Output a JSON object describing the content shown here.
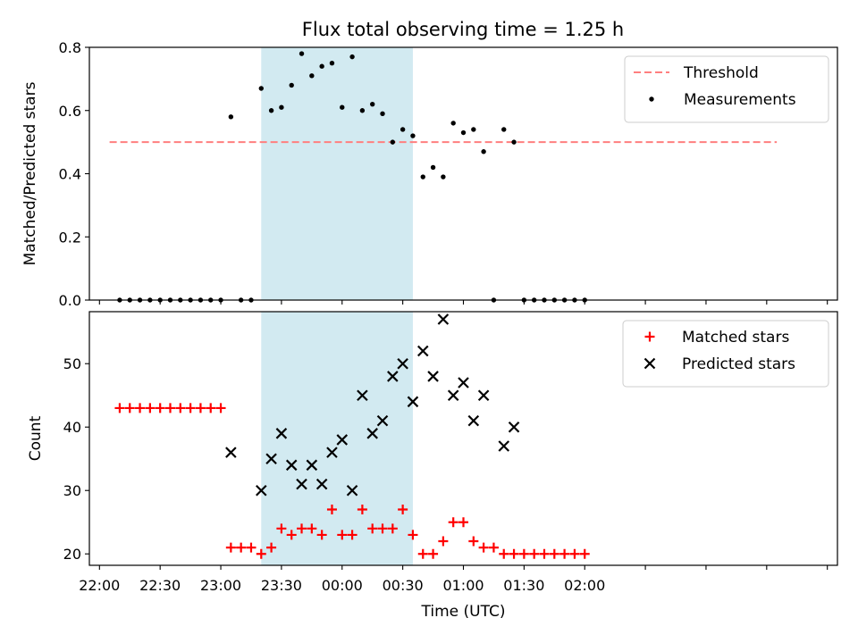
{
  "figure": {
    "title": "Flux total observing time = 1.25 h"
  },
  "chart_data": [
    {
      "type": "scatter",
      "ylabel": "Matched/Predicted stars",
      "xlabel": "",
      "ylim": [
        0.0,
        0.8
      ],
      "yticks": [
        0.0,
        0.2,
        0.4,
        0.6,
        0.8
      ],
      "ytick_labels": [
        "0.0",
        "0.2",
        "0.4",
        "0.6",
        "0.8"
      ],
      "x_range_min": [
        -65,
        305
      ],
      "xticks_min": [
        -60,
        -30,
        0,
        30,
        60,
        90,
        120,
        150,
        180,
        210,
        240,
        270,
        300
      ],
      "shaded_region_min": [
        20,
        95
      ],
      "shade_color": "#add8e6",
      "legend_position": "top-right",
      "threshold": {
        "name": "Threshold",
        "y": 0.5,
        "x_range_min": [
          -55,
          275
        ],
        "color": "#ff7f7f"
      },
      "series": [
        {
          "name": "Measurements",
          "marker": "dot",
          "color": "#000000",
          "x": [
            "22:10",
            "22:15",
            "22:20",
            "22:25",
            "22:30",
            "22:35",
            "22:40",
            "22:45",
            "22:50",
            "22:55",
            "23:00",
            "23:05",
            "23:10",
            "23:15",
            "23:20",
            "23:25",
            "23:30",
            "23:35",
            "23:40",
            "23:45",
            "23:50",
            "23:55",
            "00:00",
            "00:05",
            "00:10",
            "00:15",
            "00:20",
            "00:25",
            "00:30",
            "00:35",
            "00:40",
            "00:45",
            "00:50",
            "00:55",
            "01:00",
            "01:05",
            "01:10",
            "01:15",
            "01:20",
            "01:25",
            "01:30",
            "01:35",
            "01:40",
            "01:45",
            "01:50",
            "01:55",
            "02:00"
          ],
          "y": [
            0,
            0,
            0,
            0,
            0,
            0,
            0,
            0,
            0,
            0,
            0,
            0.58,
            0,
            0,
            0.67,
            0.6,
            0.61,
            0.68,
            0.78,
            0.71,
            0.74,
            0.75,
            0.61,
            0.77,
            0.6,
            0.62,
            0.59,
            0.5,
            0.54,
            0.52,
            0.39,
            0.42,
            0.39,
            0.56,
            0.53,
            0.54,
            0.47,
            0,
            0.54,
            0.5,
            0,
            0,
            0,
            0,
            0,
            0,
            0
          ]
        }
      ]
    },
    {
      "type": "scatter",
      "ylabel": "Count",
      "xlabel": "Time (UTC)",
      "ylim": [
        18.2,
        58.2
      ],
      "yticks": [
        20,
        30,
        40,
        50
      ],
      "ytick_labels": [
        "20",
        "30",
        "40",
        "50"
      ],
      "x_range_min": [
        -65,
        305
      ],
      "xticks_min": [
        -60,
        -30,
        0,
        30,
        60,
        90,
        120,
        150,
        180,
        210,
        240,
        270,
        300
      ],
      "xtick_labels": [
        "22:00",
        "22:30",
        "23:00",
        "23:30",
        "00:00",
        "00:30",
        "01:00",
        "01:30",
        "02:00"
      ],
      "xtick_label_min": [
        -60,
        -30,
        0,
        30,
        60,
        90,
        120,
        150,
        180
      ],
      "xtick_label_note_unused": "",
      "shaded_region_min": [
        20,
        95
      ],
      "shade_color": "#add8e6",
      "legend_position": "top-right",
      "series": [
        {
          "name": "Matched stars",
          "marker": "plus",
          "color": "#ff0000",
          "x": [
            "22:10",
            "22:15",
            "22:20",
            "22:25",
            "22:30",
            "22:35",
            "22:40",
            "22:45",
            "22:50",
            "22:55",
            "23:00",
            "23:05",
            "23:10",
            "23:15",
            "23:20",
            "23:25",
            "23:30",
            "23:35",
            "23:40",
            "23:45",
            "23:50",
            "23:55",
            "00:00",
            "00:05",
            "00:10",
            "00:15",
            "00:20",
            "00:25",
            "00:30",
            "00:35",
            "00:40",
            "00:45",
            "00:50",
            "00:55",
            "01:00",
            "01:05",
            "01:10",
            "01:15",
            "01:20",
            "01:25",
            "01:30",
            "01:35",
            "01:40",
            "01:45",
            "01:50",
            "01:55",
            "02:00"
          ],
          "y": [
            43,
            43,
            43,
            43,
            43,
            43,
            43,
            43,
            43,
            43,
            43,
            21,
            21,
            21,
            20,
            21,
            24,
            23,
            24,
            24,
            23,
            27,
            23,
            23,
            27,
            24,
            24,
            24,
            27,
            23,
            20,
            20,
            22,
            25,
            25,
            22,
            21,
            21,
            20,
            20,
            20,
            20,
            20,
            20,
            20,
            20,
            20
          ]
        },
        {
          "name": "Predicted stars",
          "marker": "x",
          "color": "#000000",
          "x": [
            "23:05",
            "23:20",
            "23:25",
            "23:30",
            "23:35",
            "23:40",
            "23:45",
            "23:50",
            "23:55",
            "00:00",
            "00:05",
            "00:10",
            "00:15",
            "00:20",
            "00:25",
            "00:30",
            "00:35",
            "00:40",
            "00:45",
            "00:50",
            "00:55",
            "01:00",
            "01:05",
            "01:10",
            "01:20",
            "01:25"
          ],
          "y": [
            36,
            30,
            35,
            39,
            34,
            31,
            34,
            31,
            36,
            38,
            30,
            45,
            39,
            41,
            48,
            50,
            44,
            52,
            48,
            57,
            45,
            47,
            41,
            45,
            37,
            40
          ]
        }
      ]
    }
  ]
}
